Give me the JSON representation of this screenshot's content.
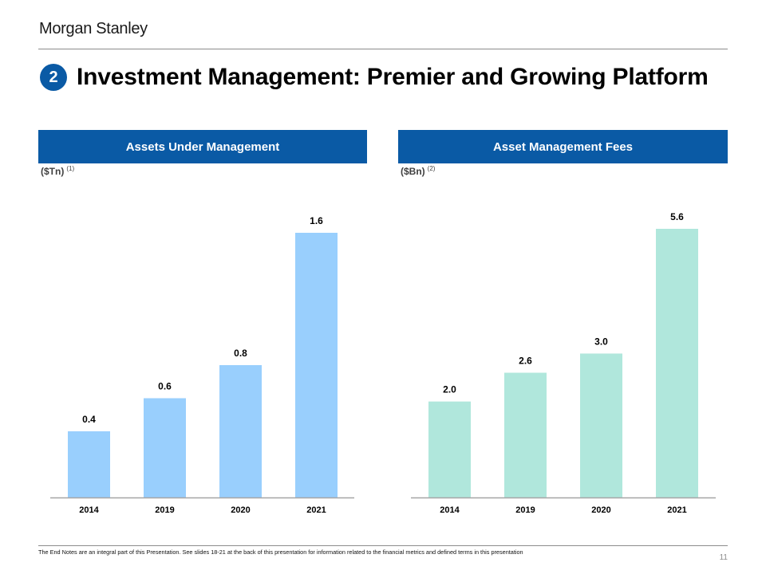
{
  "header": {
    "logo_text": "Morgan Stanley",
    "badge_number": "2",
    "title": "Investment Management: Premier and Growing Platform"
  },
  "colors": {
    "brand_blue": "#0a5aa5",
    "aum_bar": "#99cffd",
    "fees_bar": "#b0e7dc",
    "axis": "#a6a6a6"
  },
  "chart_data": [
    {
      "type": "bar",
      "title": "Assets Under Management",
      "unit_label": "($Tn)",
      "unit_footnote": "(1)",
      "categories": [
        "2014",
        "2019",
        "2020",
        "2021"
      ],
      "values": [
        0.4,
        0.6,
        0.8,
        1.6
      ],
      "data_labels": [
        "0.4",
        "0.6",
        "0.8",
        "1.6"
      ],
      "xlabel": "",
      "ylabel": "",
      "ylim": [
        0,
        1.6
      ],
      "grid": false,
      "legend": "none"
    },
    {
      "type": "bar",
      "title": "Asset Management Fees",
      "unit_label": "($Bn)",
      "unit_footnote": "(2)",
      "categories": [
        "2014",
        "2019",
        "2020",
        "2021"
      ],
      "values": [
        2.0,
        2.6,
        3.0,
        5.6
      ],
      "data_labels": [
        "2.0",
        "2.6",
        "3.0",
        "5.6"
      ],
      "xlabel": "",
      "ylabel": "",
      "ylim": [
        0,
        5.6
      ],
      "grid": false,
      "legend": "none"
    }
  ],
  "footer": {
    "note": "The End Notes are an integral part of this Presentation. See slides 18-21 at the back of this presentation for information related to the financial metrics and defined terms in this presentation",
    "page_number": "11"
  }
}
